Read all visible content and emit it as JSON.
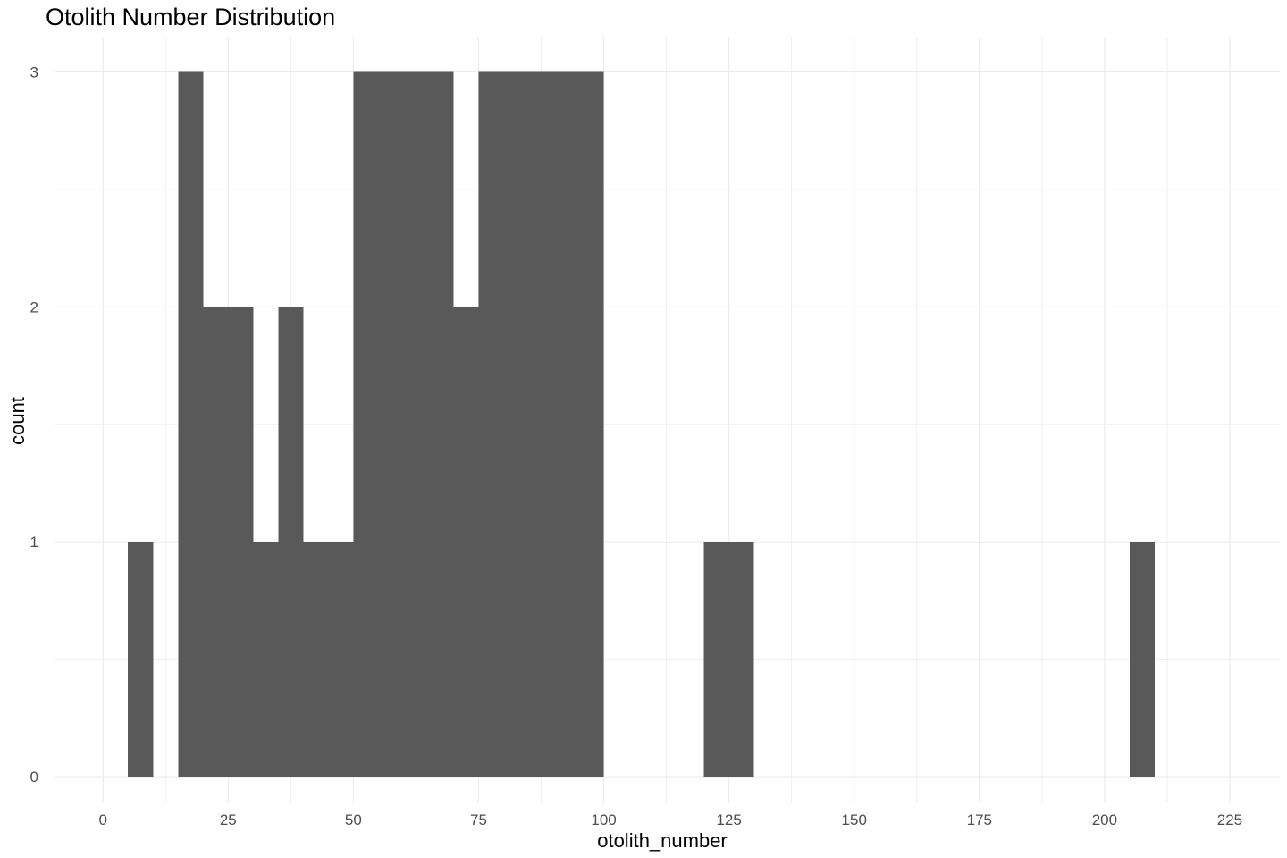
{
  "chart_data": {
    "type": "bar",
    "title": "Otolith Number Distribution",
    "xlabel": "otolith_number",
    "ylabel": "count",
    "xlim": [
      -9.5,
      235
    ],
    "ylim": [
      -0.11,
      3.15
    ],
    "x_ticks": [
      0,
      25,
      50,
      75,
      100,
      125,
      150,
      175,
      200,
      225
    ],
    "x_tick_labels": [
      "0",
      "25",
      "50",
      "75",
      "100",
      "125",
      "150",
      "175",
      "200",
      "225"
    ],
    "y_ticks": [
      0,
      1,
      2,
      3
    ],
    "y_tick_labels": [
      "0",
      "1",
      "2",
      "3"
    ],
    "bin_width": 5,
    "bins": [
      {
        "start": 5,
        "end": 10,
        "count": 1
      },
      {
        "start": 15,
        "end": 20,
        "count": 3
      },
      {
        "start": 20,
        "end": 25,
        "count": 2
      },
      {
        "start": 25,
        "end": 30,
        "count": 2
      },
      {
        "start": 30,
        "end": 35,
        "count": 1
      },
      {
        "start": 35,
        "end": 40,
        "count": 2
      },
      {
        "start": 40,
        "end": 45,
        "count": 1
      },
      {
        "start": 45,
        "end": 50,
        "count": 1
      },
      {
        "start": 50,
        "end": 55,
        "count": 3
      },
      {
        "start": 55,
        "end": 60,
        "count": 3
      },
      {
        "start": 60,
        "end": 65,
        "count": 3
      },
      {
        "start": 65,
        "end": 70,
        "count": 3
      },
      {
        "start": 70,
        "end": 75,
        "count": 2
      },
      {
        "start": 75,
        "end": 80,
        "count": 3
      },
      {
        "start": 80,
        "end": 85,
        "count": 3
      },
      {
        "start": 85,
        "end": 90,
        "count": 3
      },
      {
        "start": 90,
        "end": 95,
        "count": 3
      },
      {
        "start": 95,
        "end": 100,
        "count": 3
      },
      {
        "start": 120,
        "end": 125,
        "count": 1
      },
      {
        "start": 125,
        "end": 130,
        "count": 1
      },
      {
        "start": 205,
        "end": 210,
        "count": 1
      }
    ],
    "bar_color": "#595959",
    "grid": true,
    "grid_color": "#ebebeb",
    "background": "#ffffff",
    "legend": "none"
  }
}
